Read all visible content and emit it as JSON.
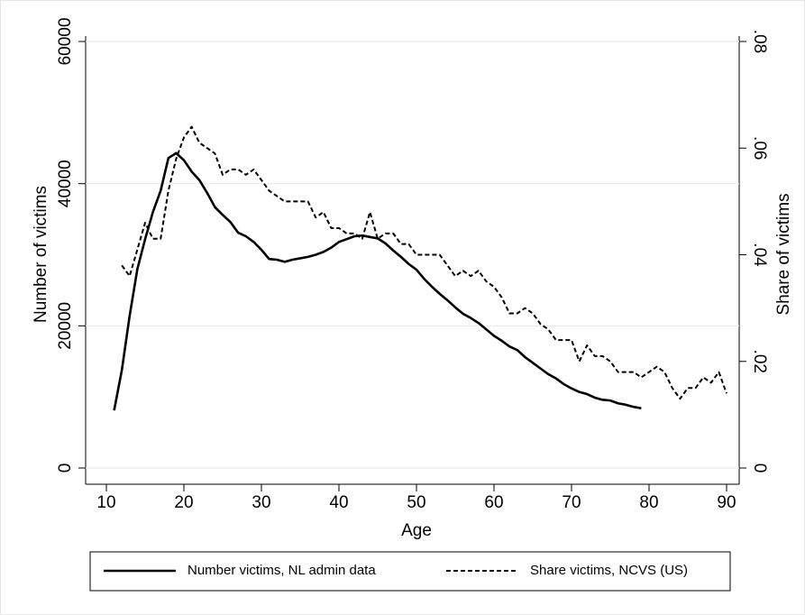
{
  "chart_data": {
    "type": "line",
    "xlabel": "Age",
    "ylabel": "Number of victims",
    "y2label": "Share of victims",
    "xlim": [
      10,
      90
    ],
    "xticks": [
      10,
      20,
      30,
      40,
      50,
      60,
      70,
      80,
      90
    ],
    "ylim": [
      0,
      60000
    ],
    "yticks": [
      0,
      20000,
      40000,
      60000
    ],
    "y2lim": [
      0,
      0.08
    ],
    "y2ticks": [
      0,
      {
        "value": 0.02,
        "label": ".02"
      },
      {
        "value": 0.04,
        "label": ".04"
      },
      {
        "value": 0.06,
        "label": ".06"
      },
      {
        "value": 0.08,
        "label": ".08"
      }
    ],
    "grid": true,
    "legend": "bottom",
    "series": [
      {
        "name": "Number victims, NL admin data",
        "color": "#000000",
        "line_style": "solid",
        "x": [
          11,
          12,
          13,
          14,
          15,
          16,
          17,
          18,
          19,
          20,
          21,
          22,
          23,
          24,
          25,
          26,
          27,
          28,
          29,
          30,
          31,
          32,
          33,
          34,
          35,
          36,
          37,
          38,
          39,
          40,
          41,
          42,
          43,
          44,
          45,
          46,
          47,
          48,
          49,
          50,
          51,
          52,
          53,
          54,
          55,
          56,
          57,
          58,
          59,
          60,
          61,
          62,
          63,
          64,
          65,
          66,
          67,
          68,
          69,
          70,
          71,
          72,
          73,
          74,
          75,
          76,
          77,
          78,
          79
        ],
        "values": [
          8100,
          13800,
          21400,
          28000,
          32200,
          36000,
          39000,
          43600,
          44300,
          43300,
          41700,
          40500,
          38700,
          36700,
          35600,
          34600,
          33100,
          32600,
          31800,
          30700,
          29400,
          29300,
          29000,
          29300,
          29500,
          29700,
          30000,
          30400,
          31000,
          31800,
          32200,
          32600,
          32700,
          32500,
          32300,
          31600,
          30600,
          29700,
          28700,
          27900,
          26600,
          25500,
          24500,
          23600,
          22600,
          21700,
          21100,
          20400,
          19500,
          18600,
          17900,
          17100,
          16600,
          15600,
          14800,
          14000,
          13200,
          12600,
          11800,
          11200,
          10700,
          10400,
          9900,
          9600,
          9500,
          9100,
          8900,
          8600,
          8400
        ]
      },
      {
        "name": "Share victims, NCVS (US)",
        "color": "#000000",
        "line_style": "dashed",
        "axis": "y2",
        "x": [
          12,
          13,
          14,
          15,
          16,
          17,
          18,
          19,
          20,
          21,
          22,
          23,
          24,
          25,
          26,
          27,
          28,
          29,
          30,
          31,
          32,
          33,
          34,
          35,
          36,
          37,
          38,
          39,
          40,
          41,
          42,
          43,
          44,
          45,
          46,
          47,
          48,
          49,
          50,
          51,
          52,
          53,
          54,
          55,
          56,
          57,
          58,
          59,
          60,
          61,
          62,
          63,
          64,
          65,
          66,
          67,
          68,
          69,
          70,
          71,
          72,
          73,
          74,
          75,
          76,
          77,
          78,
          79,
          80,
          81,
          82,
          83,
          84,
          85,
          86,
          87,
          88,
          89,
          90
        ],
        "values": [
          0.038,
          0.036,
          0.041,
          0.046,
          0.043,
          0.043,
          0.052,
          0.058,
          0.062,
          0.064,
          0.061,
          0.06,
          0.059,
          0.055,
          0.056,
          0.056,
          0.055,
          0.056,
          0.054,
          0.052,
          0.051,
          0.05,
          0.05,
          0.05,
          0.05,
          0.047,
          0.048,
          0.045,
          0.045,
          0.044,
          0.044,
          0.043,
          0.048,
          0.043,
          0.044,
          0.044,
          0.042,
          0.042,
          0.04,
          0.04,
          0.04,
          0.04,
          0.038,
          0.036,
          0.037,
          0.036,
          0.037,
          0.035,
          0.034,
          0.032,
          0.029,
          0.029,
          0.03,
          0.029,
          0.027,
          0.026,
          0.024,
          0.024,
          0.024,
          0.02,
          0.023,
          0.021,
          0.021,
          0.02,
          0.018,
          0.018,
          0.018,
          0.017,
          0.018,
          0.019,
          0.018,
          0.015,
          0.013,
          0.015,
          0.015,
          0.017,
          0.016,
          0.018,
          0.014
        ]
      }
    ]
  }
}
